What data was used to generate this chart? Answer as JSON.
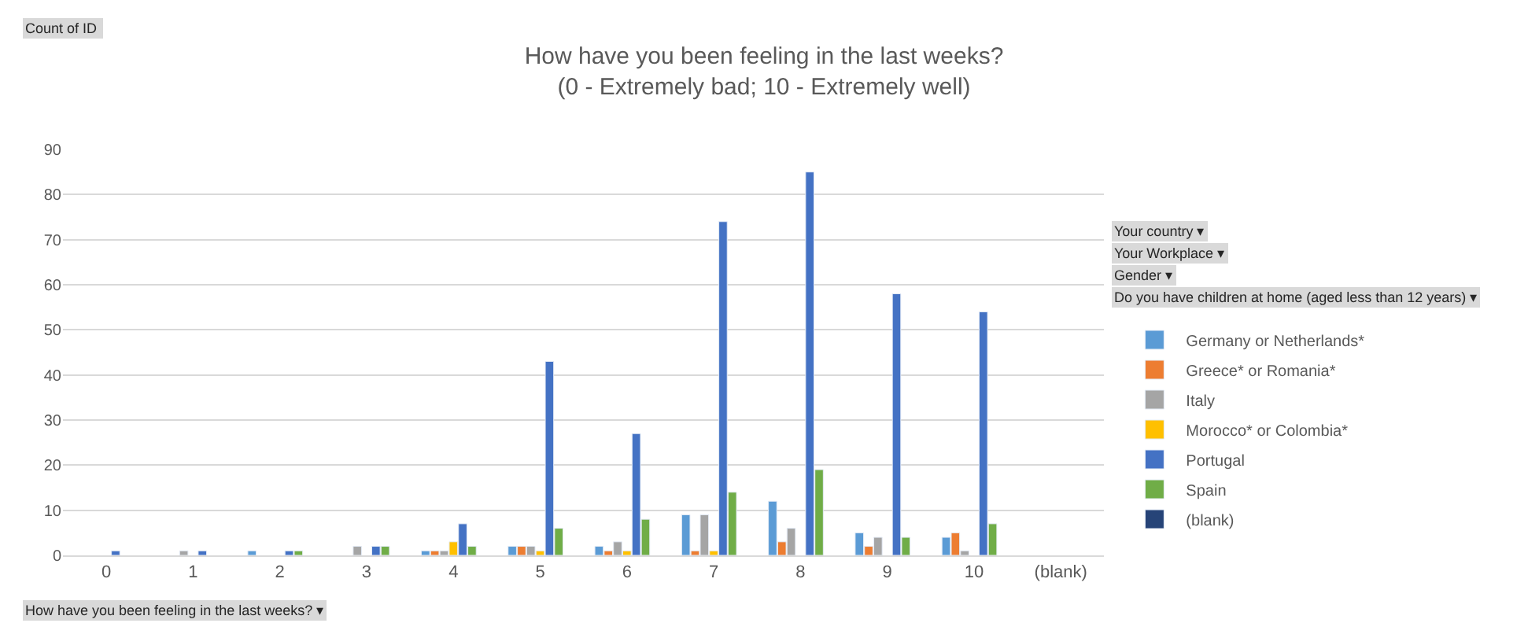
{
  "chart_data": {
    "type": "bar",
    "title": "How have you been feeling in the last weeks?\n(0 - Extremely bad; 10 - Extremely well)",
    "categories": [
      "0",
      "1",
      "2",
      "3",
      "4",
      "5",
      "6",
      "7",
      "8",
      "9",
      "10",
      "(blank)"
    ],
    "series": [
      {
        "name": "Germany or Netherlands*",
        "color": "#5b9bd5",
        "values": [
          null,
          null,
          1,
          null,
          1,
          2,
          2,
          9,
          12,
          5,
          4,
          null
        ]
      },
      {
        "name": "Greece* or Romania*",
        "color": "#ed7d31",
        "values": [
          null,
          null,
          null,
          null,
          1,
          2,
          1,
          1,
          3,
          2,
          5,
          null
        ]
      },
      {
        "name": "Italy",
        "color": "#a5a5a5",
        "values": [
          null,
          1,
          null,
          2,
          1,
          2,
          3,
          9,
          6,
          4,
          1,
          null
        ]
      },
      {
        "name": "Morocco* or Colombia*",
        "color": "#ffc000",
        "values": [
          null,
          null,
          null,
          null,
          3,
          1,
          1,
          1,
          null,
          null,
          null,
          null
        ]
      },
      {
        "name": "Portugal",
        "color": "#4472c4",
        "values": [
          1,
          1,
          1,
          2,
          7,
          43,
          27,
          74,
          85,
          58,
          54,
          null
        ]
      },
      {
        "name": "Spain",
        "color": "#70ad47",
        "values": [
          null,
          null,
          1,
          2,
          2,
          6,
          8,
          14,
          19,
          4,
          7,
          null
        ]
      },
      {
        "name": "(blank)",
        "color": "#264478",
        "values": [
          null,
          null,
          null,
          null,
          null,
          null,
          null,
          null,
          null,
          null,
          null,
          null
        ]
      }
    ],
    "ylim": [
      0,
      90
    ],
    "yticks": [
      0,
      10,
      20,
      30,
      40,
      50,
      60,
      70,
      80,
      90
    ],
    "grid": "y",
    "legend": "right",
    "annotations": [
      "Count of ID ",
      "Your country ▾",
      "Your Workplace ▾",
      "Gender ▾",
      "Do you have children at home (aged less than 12 years) ▾",
      "How have you been feeling in the last weeks? ▾"
    ]
  }
}
